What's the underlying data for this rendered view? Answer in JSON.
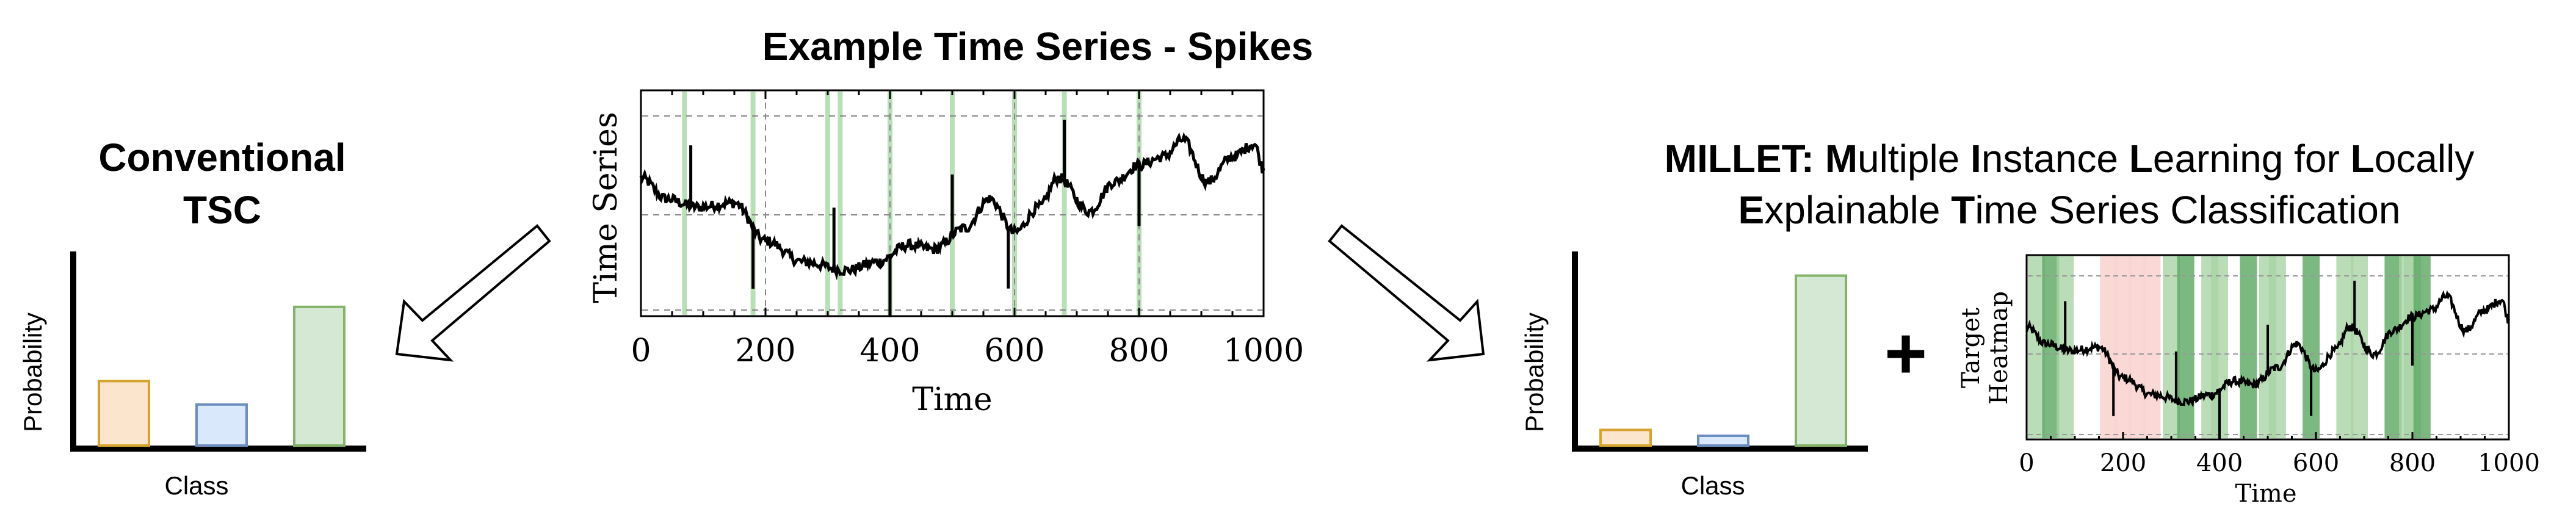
{
  "center": {
    "title": "Example Time Series - Spikes",
    "ylabel": "Time Series",
    "xlabel": "Time",
    "xticks": [
      "0",
      "200",
      "400",
      "600",
      "800",
      "1000"
    ]
  },
  "left": {
    "title_lines": [
      "Conventional",
      "TSC"
    ],
    "ylabel": "Probability",
    "xlabel": "Class"
  },
  "right": {
    "title_line1": [
      {
        "text": "MILLET: ",
        "bold": true
      },
      {
        "text": "M",
        "bold": true
      },
      {
        "text": "ultiple ",
        "bold": false
      },
      {
        "text": "I",
        "bold": true
      },
      {
        "text": "nstance ",
        "bold": false
      },
      {
        "text": "L",
        "bold": true
      },
      {
        "text": "earning for ",
        "bold": false
      },
      {
        "text": "L",
        "bold": true
      },
      {
        "text": "ocally",
        "bold": false
      }
    ],
    "title_line2": [
      {
        "text": "E",
        "bold": true
      },
      {
        "text": "xplainable ",
        "bold": false
      },
      {
        "text": "T",
        "bold": true
      },
      {
        "text": "ime Series Classification",
        "bold": false
      }
    ],
    "ylabel": "Probability",
    "xlabel": "Class",
    "plus": "+",
    "heatmap_ylabel_line1": "Target",
    "heatmap_ylabel_line2": "Heatmap",
    "heatmap_xlabel": "Time",
    "heatmap_xticks": [
      "0",
      "200",
      "400",
      "600",
      "800",
      "1000"
    ]
  },
  "chart_data": [
    {
      "type": "line",
      "title": "Example Time Series - Spikes",
      "xlabel": "Time",
      "ylabel": "Time Series",
      "xlim": [
        0,
        1000
      ],
      "grid": true,
      "spike_times": [
        80,
        180,
        310,
        400,
        500,
        590,
        680,
        800
      ],
      "green_bands": [
        70,
        180,
        300,
        320,
        400,
        500,
        600,
        680,
        800
      ]
    },
    {
      "type": "bar",
      "ylabel": "Probability",
      "xlabel": "Class",
      "categories": [
        "",
        "",
        ""
      ],
      "values": [
        0.33,
        0.21,
        0.71
      ],
      "colors": [
        "#fce5cd",
        "#dae8fc",
        "#d5e8d4"
      ],
      "edge_colors": [
        "#d6a32e",
        "#6c8ebf",
        "#82b366"
      ]
    },
    {
      "type": "bar",
      "ylabel": "Probability",
      "xlabel": "Class",
      "categories": [
        "",
        "",
        ""
      ],
      "values": [
        0.08,
        0.05,
        0.87
      ],
      "colors": [
        "#fce5cd",
        "#dae8fc",
        "#d5e8d4"
      ],
      "edge_colors": [
        "#d6a32e",
        "#6c8ebf",
        "#82b366"
      ]
    },
    {
      "type": "heatmap",
      "ylabel": "Target Heatmap",
      "xlabel": "Time",
      "xlim": [
        0,
        1000
      ],
      "red_bands": [
        170,
        200,
        230,
        260
      ],
      "green_bands": [
        20,
        50,
        80,
        300,
        330,
        380,
        400,
        460,
        500,
        520,
        590,
        660,
        690,
        760,
        790,
        800,
        820
      ]
    }
  ]
}
